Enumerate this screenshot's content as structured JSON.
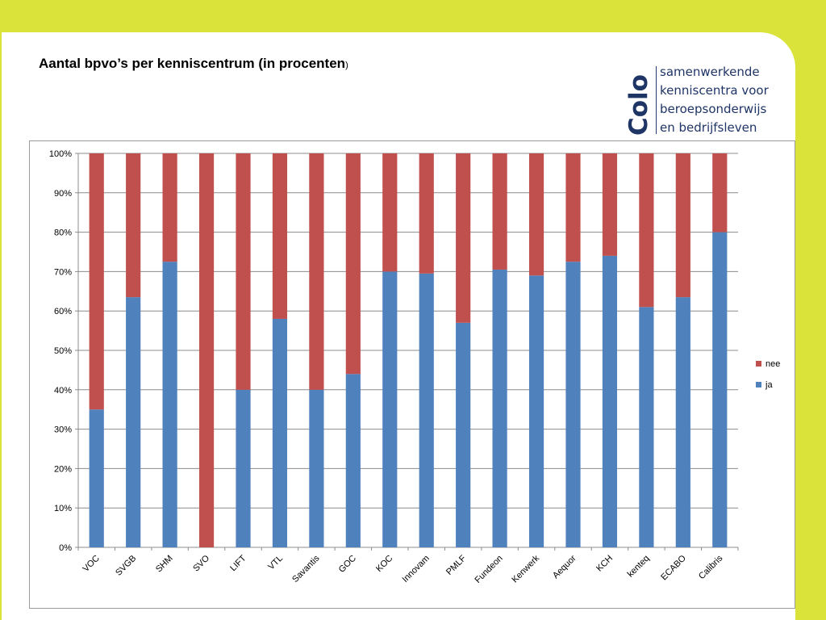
{
  "title": {
    "text": "Aantal bpvo’s per kenniscentrum (in procenten",
    "closing": ")"
  },
  "logo": {
    "mark": "Colo",
    "lines": [
      "samenwerkende",
      "kenniscentra voor",
      "beroepsonderwijs",
      "en bedrijfsleven"
    ],
    "color": "#1f3566"
  },
  "colors": {
    "background": "#d9e339",
    "ja": "#4f81bd",
    "nee": "#c0504d"
  },
  "chart_data": {
    "type": "bar",
    "stacked": true,
    "categories": [
      "VOC",
      "SVGB",
      "SHM",
      "SVO",
      "LIFT",
      "VTL",
      "Savantis",
      "GOC",
      "KOC",
      "Innovam",
      "PMLF",
      "Fundeon",
      "Kenwerk",
      "Aequor",
      "KCH",
      "kenteq",
      "ECABO",
      "Calibris"
    ],
    "series": [
      {
        "name": "ja",
        "values": [
          35,
          63.5,
          72.5,
          0,
          40,
          58,
          40,
          44,
          70,
          69.5,
          57,
          70.5,
          69,
          72.5,
          74,
          61,
          63.5,
          80
        ]
      },
      {
        "name": "nee",
        "values": [
          65,
          36.5,
          27.5,
          100,
          60,
          42,
          60,
          56,
          30,
          30.5,
          43,
          29.5,
          31,
          27.5,
          26,
          39,
          36.5,
          20
        ]
      }
    ],
    "yticks": [
      "0%",
      "10%",
      "20%",
      "30%",
      "40%",
      "50%",
      "60%",
      "70%",
      "80%",
      "90%",
      "100%"
    ],
    "ylim": [
      0,
      100
    ],
    "legend": [
      "nee",
      "ja"
    ],
    "legend_position": "right",
    "grid": true
  }
}
